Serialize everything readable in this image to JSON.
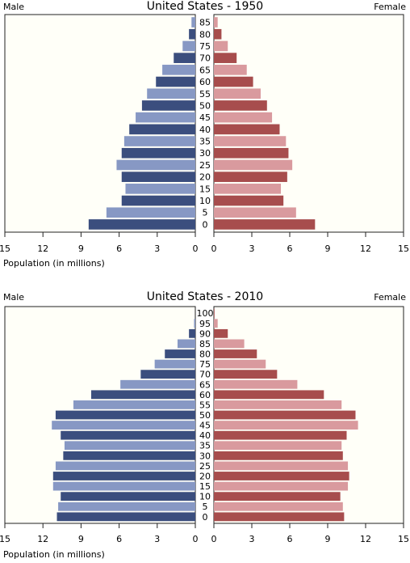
{
  "chart_data": [
    {
      "type": "population-pyramid",
      "title": "United States - 1950",
      "left_label": "Male",
      "right_label": "Female",
      "xlabel": "Population (in millions)",
      "xlim": [
        0,
        15
      ],
      "x_ticks": [
        "15",
        "12",
        "9",
        "6",
        "3",
        "0"
      ],
      "x_ticks_right": [
        "0",
        "3",
        "6",
        "9",
        "12",
        "15"
      ],
      "age_groups": [
        "0",
        "5",
        "10",
        "15",
        "20",
        "25",
        "30",
        "35",
        "40",
        "45",
        "50",
        "55",
        "60",
        "65",
        "70",
        "75",
        "80",
        "85"
      ],
      "male": [
        8.4,
        7.0,
        5.8,
        5.5,
        5.8,
        6.2,
        5.8,
        5.6,
        5.2,
        4.7,
        4.2,
        3.8,
        3.1,
        2.6,
        1.7,
        1.0,
        0.5,
        0.3
      ],
      "female": [
        8.0,
        6.5,
        5.5,
        5.3,
        5.8,
        6.2,
        5.9,
        5.7,
        5.2,
        4.6,
        4.2,
        3.7,
        3.1,
        2.6,
        1.8,
        1.1,
        0.6,
        0.3
      ],
      "colors": {
        "male_dark": "#3b4e7e",
        "male_light": "#8798c4",
        "female_dark": "#a74d4d",
        "female_light": "#d99a9e"
      }
    },
    {
      "type": "population-pyramid",
      "title": "United States - 2010",
      "left_label": "Male",
      "right_label": "Female",
      "xlabel": "Population (in millions)",
      "xlim": [
        0,
        15
      ],
      "x_ticks": [
        "15",
        "12",
        "9",
        "6",
        "3",
        "0"
      ],
      "x_ticks_right": [
        "0",
        "3",
        "6",
        "9",
        "12",
        "15"
      ],
      "age_groups": [
        "0",
        "5",
        "10",
        "15",
        "20",
        "25",
        "30",
        "35",
        "40",
        "45",
        "50",
        "55",
        "60",
        "65",
        "70",
        "75",
        "80",
        "85",
        "90",
        "95",
        "100"
      ],
      "male": [
        10.9,
        10.8,
        10.6,
        11.2,
        11.2,
        11.0,
        10.4,
        10.3,
        10.6,
        11.3,
        11.0,
        9.6,
        8.2,
        5.9,
        4.3,
        3.2,
        2.4,
        1.4,
        0.5,
        0.1,
        0.0
      ],
      "female": [
        10.3,
        10.2,
        10.0,
        10.6,
        10.7,
        10.6,
        10.2,
        10.1,
        10.5,
        11.4,
        11.2,
        10.1,
        8.7,
        6.6,
        5.0,
        4.1,
        3.4,
        2.4,
        1.1,
        0.3,
        0.05
      ],
      "colors": {
        "male_dark": "#3b4e7e",
        "male_light": "#8798c4",
        "female_dark": "#a74d4d",
        "female_light": "#d99a9e"
      }
    }
  ]
}
